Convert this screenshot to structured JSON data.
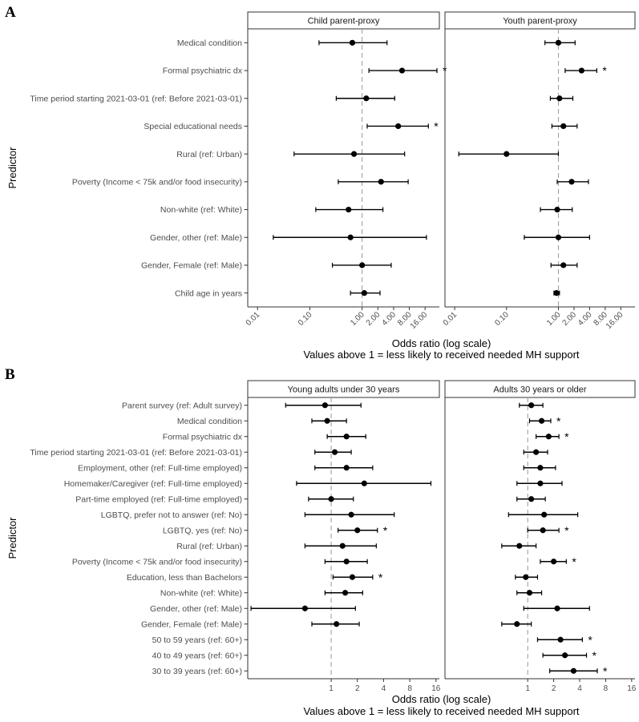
{
  "chart_data": [
    {
      "panel": "A",
      "type": "forest",
      "ylabel": "Predictor",
      "xlabel": "Odds ratio (log scale)",
      "subtitle": "Values above 1 = less likely to received needed MH support",
      "x_scale": "log",
      "xlim": [
        0.0065,
        30
      ],
      "x_ticks": [
        0.01,
        0.1,
        1.0,
        2.0,
        4.0,
        8.0,
        16.0
      ],
      "x_tick_labels": [
        "0.01",
        "0.10",
        "1.00",
        "2.00",
        "4.00",
        "8.00",
        "16.00"
      ],
      "predictors": [
        "Medical condition",
        "Formal psychiatric dx",
        "Time period starting 2021-03-01 (ref: Before 2021-03-01)",
        "Special educational needs",
        "Rural (ref: Urban)",
        "Poverty (Income < 75k and/or food insecurity)",
        "Non-white (ref: White)",
        "Gender, other (ref: Male)",
        "Gender, Female (ref: Male)",
        "Child age in years"
      ],
      "facets": [
        {
          "label": "Child parent-proxy",
          "estimates": [
            {
              "or": 0.65,
              "lo": 0.15,
              "hi": 3.0,
              "sig": false
            },
            {
              "or": 5.8,
              "lo": 1.35,
              "hi": 27,
              "sig": true
            },
            {
              "or": 1.2,
              "lo": 0.32,
              "hi": 4.2,
              "sig": false
            },
            {
              "or": 4.9,
              "lo": 1.25,
              "hi": 18.5,
              "sig": true
            },
            {
              "or": 0.7,
              "lo": 0.05,
              "hi": 6.5,
              "sig": false
            },
            {
              "or": 2.3,
              "lo": 0.35,
              "hi": 7.6,
              "sig": false
            },
            {
              "or": 0.55,
              "lo": 0.13,
              "hi": 2.5,
              "sig": false
            },
            {
              "or": 0.6,
              "lo": 0.02,
              "hi": 17,
              "sig": false
            },
            {
              "or": 1.0,
              "lo": 0.27,
              "hi": 3.6,
              "sig": false
            },
            {
              "or": 1.1,
              "lo": 0.6,
              "hi": 2.2,
              "sig": false
            }
          ]
        },
        {
          "label": "Youth parent-proxy",
          "estimates": [
            {
              "or": 1.0,
              "lo": 0.55,
              "hi": 2.1,
              "sig": false
            },
            {
              "or": 2.8,
              "lo": 1.35,
              "hi": 5.5,
              "sig": true
            },
            {
              "or": 1.05,
              "lo": 0.7,
              "hi": 1.9,
              "sig": false
            },
            {
              "or": 1.25,
              "lo": 0.75,
              "hi": 2.3,
              "sig": false
            },
            {
              "or": 0.1,
              "lo": 0.012,
              "hi": 1.0,
              "sig": false
            },
            {
              "or": 1.8,
              "lo": 0.95,
              "hi": 3.8,
              "sig": false
            },
            {
              "or": 0.95,
              "lo": 0.45,
              "hi": 1.85,
              "sig": false
            },
            {
              "or": 1.0,
              "lo": 0.22,
              "hi": 4.0,
              "sig": false
            },
            {
              "or": 1.25,
              "lo": 0.72,
              "hi": 2.3,
              "sig": false
            },
            {
              "or": 0.92,
              "lo": 0.82,
              "hi": 1.05,
              "sig": false
            }
          ]
        }
      ]
    },
    {
      "panel": "B",
      "type": "forest",
      "ylabel": "Predictor",
      "xlabel": "Odds ratio (log scale)",
      "subtitle": "Values above 1 = less likely to received needed MH support",
      "x_scale": "log",
      "xlim": [
        0.11,
        17.5
      ],
      "x_ticks": [
        1,
        2,
        4,
        8,
        16
      ],
      "x_tick_labels": [
        "1",
        "2",
        "4",
        "8",
        "16"
      ],
      "predictors": [
        "Parent survey (ref: Adult survey)",
        "Medical condition",
        "Formal psychiatric dx",
        "Time period starting 2021-03-01 (ref: Before 2021-03-01)",
        "Employment, other (ref: Full-time employed)",
        "Homemaker/Caregiver (ref: Full-time employed)",
        "Part-time employed (ref: Full-time employed)",
        "LGBTQ, prefer not to answer (ref: No)",
        "LGBTQ, yes (ref: No)",
        "Rural (ref: Urban)",
        "Poverty (Income < 75k and/or food insecurity)",
        "Education, less than Bachelors",
        "Non-white (ref: White)",
        "Gender, other (ref: Male)",
        "Gender, Female (ref: Male)",
        "50 to 59 years (ref: 60+)",
        "40 to 49 years (ref: 60+)",
        "30 to 39 years (ref: 60+)"
      ],
      "facets": [
        {
          "label": "Young adults under 30 years",
          "estimates": [
            {
              "or": 0.85,
              "lo": 0.3,
              "hi": 2.2,
              "sig": false
            },
            {
              "or": 0.9,
              "lo": 0.6,
              "hi": 1.5,
              "sig": false
            },
            {
              "or": 1.5,
              "lo": 0.9,
              "hi": 2.5,
              "sig": false
            },
            {
              "or": 1.1,
              "lo": 0.65,
              "hi": 1.7,
              "sig": false
            },
            {
              "or": 1.5,
              "lo": 0.65,
              "hi": 3.0,
              "sig": false
            },
            {
              "or": 2.4,
              "lo": 0.4,
              "hi": 14.0,
              "sig": false
            },
            {
              "or": 1.0,
              "lo": 0.55,
              "hi": 1.8,
              "sig": false
            },
            {
              "or": 1.7,
              "lo": 0.5,
              "hi": 5.3,
              "sig": false
            },
            {
              "or": 2.0,
              "lo": 1.2,
              "hi": 3.4,
              "sig": true
            },
            {
              "or": 1.35,
              "lo": 0.5,
              "hi": 3.3,
              "sig": false
            },
            {
              "or": 1.5,
              "lo": 0.85,
              "hi": 2.6,
              "sig": false
            },
            {
              "or": 1.75,
              "lo": 1.05,
              "hi": 3.0,
              "sig": true
            },
            {
              "or": 1.45,
              "lo": 0.85,
              "hi": 2.3,
              "sig": false
            },
            {
              "or": 0.5,
              "lo": 0.12,
              "hi": 1.9,
              "sig": false
            },
            {
              "or": 1.15,
              "lo": 0.6,
              "hi": 2.1,
              "sig": false
            }
          ]
        },
        {
          "label": "Adults 30 years or older",
          "estimates": [
            {
              "or": 1.1,
              "lo": 0.8,
              "hi": 1.5,
              "sig": false
            },
            {
              "or": 1.45,
              "lo": 1.05,
              "hi": 1.85,
              "sig": true
            },
            {
              "or": 1.75,
              "lo": 1.25,
              "hi": 2.3,
              "sig": true
            },
            {
              "or": 1.25,
              "lo": 0.9,
              "hi": 1.7,
              "sig": false
            },
            {
              "or": 1.4,
              "lo": 0.9,
              "hi": 2.1,
              "sig": false
            },
            {
              "or": 1.4,
              "lo": 0.75,
              "hi": 2.5,
              "sig": false
            },
            {
              "or": 1.1,
              "lo": 0.75,
              "hi": 1.6,
              "sig": false
            },
            {
              "or": 1.55,
              "lo": 0.6,
              "hi": 3.8,
              "sig": false
            },
            {
              "or": 1.5,
              "lo": 1.0,
              "hi": 2.3,
              "sig": true
            },
            {
              "or": 0.8,
              "lo": 0.5,
              "hi": 1.25,
              "sig": false
            },
            {
              "or": 2.0,
              "lo": 1.4,
              "hi": 2.8,
              "sig": true
            },
            {
              "or": 0.95,
              "lo": 0.72,
              "hi": 1.3,
              "sig": false
            },
            {
              "or": 1.05,
              "lo": 0.75,
              "hi": 1.45,
              "sig": false
            },
            {
              "or": 2.2,
              "lo": 0.9,
              "hi": 5.2,
              "sig": false
            },
            {
              "or": 0.75,
              "lo": 0.5,
              "hi": 1.1,
              "sig": false
            },
            {
              "or": 2.4,
              "lo": 1.3,
              "hi": 4.3,
              "sig": true
            },
            {
              "or": 2.7,
              "lo": 1.5,
              "hi": 4.8,
              "sig": true
            },
            {
              "or": 3.4,
              "lo": 1.8,
              "hi": 6.4,
              "sig": true
            }
          ]
        }
      ]
    }
  ]
}
